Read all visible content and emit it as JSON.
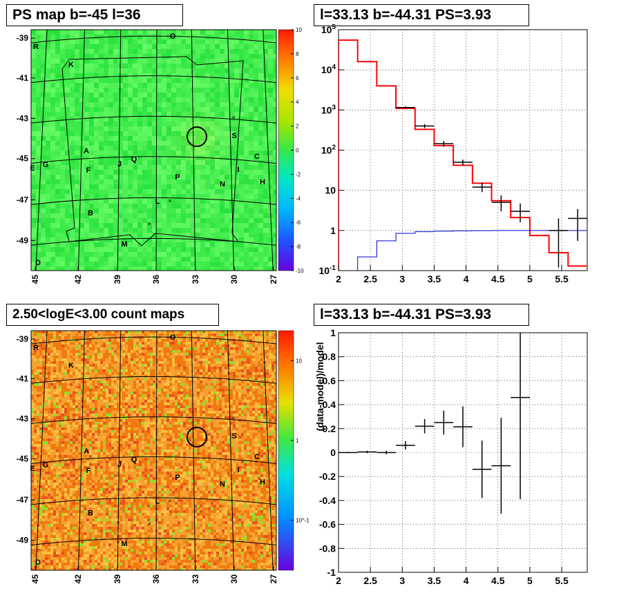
{
  "panels": {
    "ps_map_title": "PS map b=-45 l=36",
    "spectrum_title": "l=33.13 b=-44.31 PS=3.93",
    "count_map_title": "2.50<logE<3.00 count maps",
    "residual_title": "l=33.13 b=-44.31 PS=3.93"
  },
  "chart_data": [
    {
      "id": "ps_map",
      "type": "heatmap",
      "title": "PS map b=-45 l=36",
      "x_ticks": [
        "45",
        "42",
        "39",
        "36",
        "33",
        "30",
        "27"
      ],
      "y_ticks": [
        "-39",
        "-41",
        "-43",
        "-45",
        "-47",
        "-49"
      ],
      "colorbar_ticks": [
        "10",
        "8",
        "6",
        "4",
        "2",
        "0",
        "-2",
        "-4",
        "-6",
        "-8",
        "-10"
      ],
      "colorbar_range": [
        -10,
        10
      ],
      "source_labels": [
        "R",
        "O",
        "K",
        "S",
        "C",
        "A",
        "Q",
        "J",
        "E",
        "G",
        "F",
        "I",
        "P",
        "N",
        "H",
        "L",
        "B",
        "M",
        "D"
      ],
      "marked_source": {
        "l": 33.13,
        "b": -44.31
      }
    },
    {
      "id": "spectrum",
      "type": "line",
      "title": "l=33.13 b=-44.31 PS=3.93",
      "x_ticks": [
        "2",
        "2.5",
        "3",
        "3.5",
        "4",
        "4.5",
        "5",
        "5.5"
      ],
      "y_ticks": [
        "10^-1",
        "1",
        "10",
        "10^2",
        "10^3",
        "10^4",
        "10^5"
      ],
      "xlim": [
        2,
        5.9
      ],
      "ylim": [
        0.1,
        100000
      ],
      "yscale": "log",
      "series": [
        {
          "kind": "step",
          "color": "#ff0000",
          "edges": [
            2,
            2.3,
            2.6,
            2.9,
            3.2,
            3.5,
            3.8,
            4.1,
            4.4,
            4.7,
            5.0,
            5.3,
            5.6,
            5.9
          ],
          "values": [
            55000,
            16000,
            4000,
            1100,
            330,
            130,
            42,
            15,
            5.5,
            2.1,
            0.75,
            0.28,
            0.13
          ]
        },
        {
          "kind": "step",
          "color": "#0000cc",
          "edges": [
            2.3,
            2.6,
            2.9,
            3.2,
            3.5,
            3.8,
            4.1,
            4.4,
            4.7,
            5.0,
            5.3,
            5.6,
            5.9
          ],
          "values": [
            0.22,
            0.55,
            0.85,
            0.93,
            0.96,
            0.98,
            0.99,
            1.0,
            1.0,
            1.0,
            1.0,
            1.0
          ]
        },
        {
          "kind": "points",
          "color": "#000000",
          "x": [
            3.05,
            3.35,
            3.65,
            3.95,
            4.25,
            4.55,
            4.85,
            5.45,
            5.75
          ],
          "y": [
            1150,
            400,
            145,
            50,
            12,
            5,
            3,
            1,
            2
          ],
          "ylo": [
            1050,
            355,
            122,
            42,
            9,
            3,
            1.6,
            0.12,
            0.55
          ],
          "yhi": [
            1250,
            445,
            168,
            58,
            15.5,
            7.5,
            4.7,
            2,
            3.4
          ],
          "xerr": 0.15
        }
      ]
    },
    {
      "id": "count_map",
      "type": "heatmap",
      "title": "2.50<logE<3.00 count maps",
      "x_ticks": [
        "45",
        "42",
        "39",
        "36",
        "33",
        "30",
        "27"
      ],
      "y_ticks": [
        "-39",
        "-41",
        "-43",
        "-45",
        "-47",
        "-49"
      ],
      "colorbar_ticks": [
        "10",
        "1",
        "10^-1"
      ],
      "colorbar_scale": "log",
      "source_labels": [
        "R",
        "O",
        "K",
        "S",
        "C",
        "A",
        "Q",
        "J",
        "E",
        "G",
        "F",
        "I",
        "P",
        "N",
        "H",
        "L",
        "B",
        "M",
        "D"
      ],
      "marked_source": {
        "l": 33.13,
        "b": -44.31
      }
    },
    {
      "id": "residual",
      "type": "scatter",
      "title": "l=33.13 b=-44.31 PS=3.93",
      "ylabel": "(data-model)/model",
      "x_ticks": [
        "2",
        "2.5",
        "3",
        "3.5",
        "4",
        "4.5",
        "5",
        "5.5"
      ],
      "y_ticks": [
        "-1",
        "-0.8",
        "-0.6",
        "-0.4",
        "-0.2",
        "0",
        "0.2",
        "0.4",
        "0.6",
        "0.8",
        "1"
      ],
      "xlim": [
        2,
        5.9
      ],
      "ylim": [
        -1,
        1
      ],
      "x": [
        2.15,
        2.45,
        2.75,
        3.05,
        3.35,
        3.65,
        3.95,
        4.25,
        4.55,
        4.85
      ],
      "y": [
        0.0,
        0.005,
        0.0,
        0.06,
        0.22,
        0.25,
        0.215,
        -0.14,
        -0.11,
        0.46
      ],
      "yerr": [
        0.005,
        0.01,
        0.015,
        0.035,
        0.06,
        0.1,
        0.17,
        0.24,
        0.4,
        0.85
      ],
      "xerr": 0.15
    }
  ]
}
